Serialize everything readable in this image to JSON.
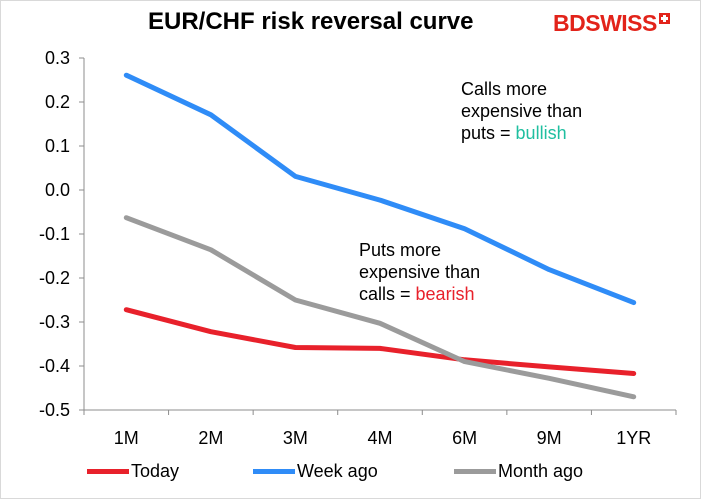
{
  "header": {
    "title": "EUR/CHF risk reversal curve",
    "logo_bd": "BD",
    "logo_swiss": "SWISS"
  },
  "annotations": {
    "bullish": {
      "line1": "Calls more",
      "line2": "expensive than",
      "line3_prefix": "puts = ",
      "highlight": "bullish",
      "highlight_color": "#1fbfa0"
    },
    "bearish": {
      "line1": "Puts more",
      "line2": "expensive than",
      "line3_prefix": "calls = ",
      "highlight": "bearish",
      "highlight_color": "#e8212b"
    }
  },
  "chart_data": {
    "type": "line",
    "title": "EUR/CHF risk reversal curve",
    "xlabel": "",
    "ylabel": "",
    "categories": [
      "1M",
      "2M",
      "3M",
      "4M",
      "6M",
      "9M",
      "1YR"
    ],
    "ylim": [
      -0.5,
      0.3
    ],
    "yticks": [
      0.3,
      0.2,
      0.1,
      0.0,
      -0.1,
      -0.2,
      -0.3,
      -0.4,
      -0.5
    ],
    "ytick_labels": [
      "0.3",
      "0.2",
      "0.1",
      "0.0",
      "-0.1",
      "-0.2",
      "-0.3",
      "-0.4",
      "-0.5"
    ],
    "grid": false,
    "legend_position": "bottom",
    "series": [
      {
        "name": "Today",
        "color": "#e8212b",
        "values": [
          -0.272,
          -0.322,
          -0.358,
          -0.36,
          -0.386,
          -0.402,
          -0.417
        ]
      },
      {
        "name": "Week ago",
        "color": "#2f8cf7",
        "values": [
          0.261,
          0.171,
          0.031,
          -0.023,
          -0.088,
          -0.181,
          -0.256
        ]
      },
      {
        "name": "Month ago",
        "color": "#9b9b9b",
        "values": [
          -0.063,
          -0.136,
          -0.25,
          -0.303,
          -0.39,
          -0.428,
          -0.47
        ]
      }
    ]
  }
}
